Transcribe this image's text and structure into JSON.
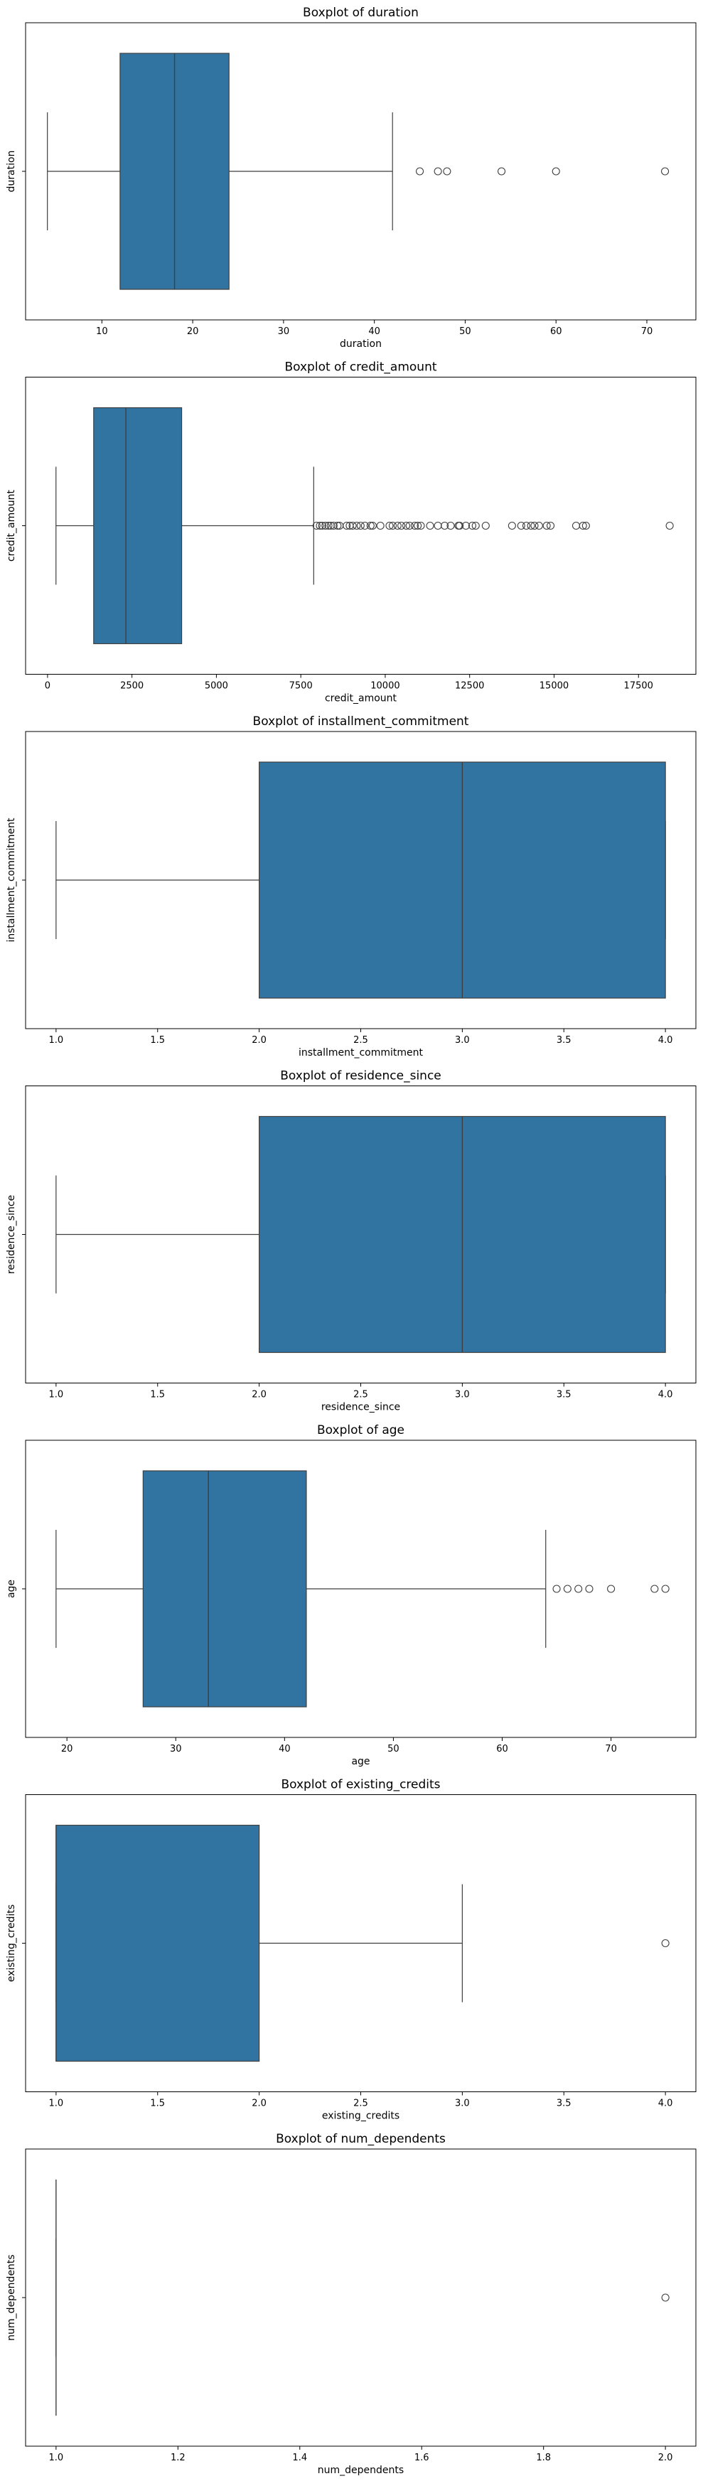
{
  "style": {
    "box_fill": "#3274a1",
    "line_color": "#3f3f3f",
    "axis_color": "#000000"
  },
  "chart_data": [
    {
      "type": "boxplot",
      "title": "Boxplot of duration",
      "xlabel": "duration",
      "ylabel": "duration",
      "xlim": [
        1.6,
        75.4
      ],
      "xticks": [
        10,
        20,
        30,
        40,
        50,
        60,
        70
      ],
      "tick_labels": [
        "10",
        "20",
        "30",
        "40",
        "50",
        "60",
        "70"
      ],
      "stats": {
        "whisker_low": 4,
        "q1": 12,
        "median": 18,
        "q3": 24,
        "whisker_high": 42
      },
      "outliers": [
        45,
        47,
        48,
        54,
        60,
        72
      ]
    },
    {
      "type": "boxplot",
      "title": "Boxplot of credit_amount",
      "xlabel": "credit_amount",
      "ylabel": "credit_amount",
      "xlim": [
        -650,
        19200
      ],
      "xticks": [
        0,
        2500,
        5000,
        7500,
        10000,
        12500,
        15000,
        17500
      ],
      "tick_labels": [
        "0",
        "2500",
        "5000",
        "7500",
        "10000",
        "12500",
        "15000",
        "17500"
      ],
      "stats": {
        "whisker_low": 250,
        "q1": 1366,
        "median": 2320,
        "q3": 3972,
        "whisker_high": 7882
      },
      "outliers": [
        7966,
        8065,
        8133,
        8229,
        8318,
        8386,
        8471,
        8588,
        8648,
        8858,
        8947,
        9034,
        9157,
        9271,
        9398,
        9566,
        9629,
        9857,
        10127,
        10222,
        10366,
        10477,
        10623,
        10722,
        10875,
        10961,
        11054,
        11328,
        11560,
        11760,
        11938,
        12169,
        12204,
        12389,
        12579,
        12680,
        12976,
        13756,
        14027,
        14179,
        14318,
        14421,
        14555,
        14782,
        14896,
        15653,
        15857,
        15945,
        18424
      ]
    },
    {
      "type": "boxplot",
      "title": "Boxplot of installment_commitment",
      "xlabel": "installment_commitment",
      "ylabel": "installment_commitment",
      "xlim": [
        0.85,
        4.15
      ],
      "xticks": [
        1.0,
        1.5,
        2.0,
        2.5,
        3.0,
        3.5,
        4.0
      ],
      "tick_labels": [
        "1.0",
        "1.5",
        "2.0",
        "2.5",
        "3.0",
        "3.5",
        "4.0"
      ],
      "stats": {
        "whisker_low": 1,
        "q1": 2,
        "median": 3,
        "q3": 4,
        "whisker_high": 4
      },
      "outliers": []
    },
    {
      "type": "boxplot",
      "title": "Boxplot of residence_since",
      "xlabel": "residence_since",
      "ylabel": "residence_since",
      "xlim": [
        0.85,
        4.15
      ],
      "xticks": [
        1.0,
        1.5,
        2.0,
        2.5,
        3.0,
        3.5,
        4.0
      ],
      "tick_labels": [
        "1.0",
        "1.5",
        "2.0",
        "2.5",
        "3.0",
        "3.5",
        "4.0"
      ],
      "stats": {
        "whisker_low": 1,
        "q1": 2,
        "median": 3,
        "q3": 4,
        "whisker_high": 4
      },
      "outliers": []
    },
    {
      "type": "boxplot",
      "title": "Boxplot of age",
      "xlabel": "age",
      "ylabel": "age",
      "xlim": [
        16.2,
        77.8
      ],
      "xticks": [
        20,
        30,
        40,
        50,
        60,
        70
      ],
      "tick_labels": [
        "20",
        "30",
        "40",
        "50",
        "60",
        "70"
      ],
      "stats": {
        "whisker_low": 19,
        "q1": 27,
        "median": 33,
        "q3": 42,
        "whisker_high": 64
      },
      "outliers": [
        65,
        66,
        67,
        68,
        70,
        74,
        75
      ]
    },
    {
      "type": "boxplot",
      "title": "Boxplot of existing_credits",
      "xlabel": "existing_credits",
      "ylabel": "existing_credits",
      "xlim": [
        0.85,
        4.15
      ],
      "xticks": [
        1.0,
        1.5,
        2.0,
        2.5,
        3.0,
        3.5,
        4.0
      ],
      "tick_labels": [
        "1.0",
        "1.5",
        "2.0",
        "2.5",
        "3.0",
        "3.5",
        "4.0"
      ],
      "stats": {
        "whisker_low": 1,
        "q1": 1,
        "median": 1,
        "q3": 2,
        "whisker_high": 3
      },
      "outliers": [
        4
      ]
    },
    {
      "type": "boxplot",
      "title": "Boxplot of num_dependents",
      "xlabel": "num_dependents",
      "ylabel": "num_dependents",
      "xlim": [
        0.95,
        2.05
      ],
      "xticks": [
        1.0,
        1.2,
        1.4,
        1.6,
        1.8,
        2.0
      ],
      "tick_labels": [
        "1.0",
        "1.2",
        "1.4",
        "1.6",
        "1.8",
        "2.0"
      ],
      "stats": {
        "whisker_low": 1,
        "q1": 1,
        "median": 1,
        "q3": 1,
        "whisker_high": 1
      },
      "outliers": [
        2
      ]
    }
  ]
}
